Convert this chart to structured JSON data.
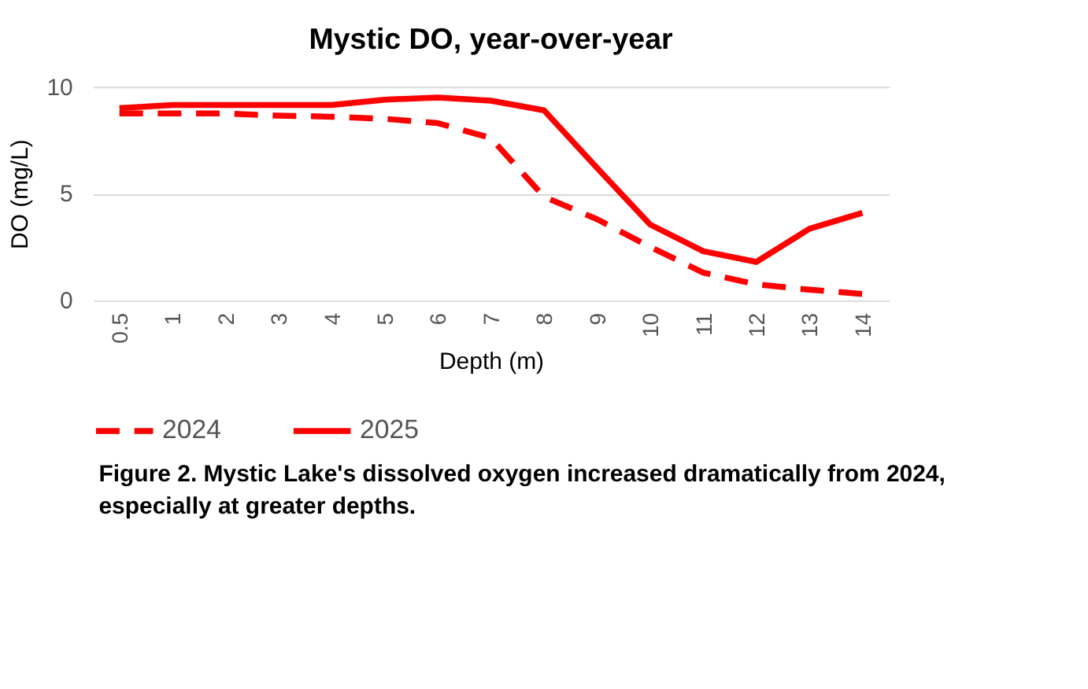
{
  "chart_data": {
    "type": "line",
    "title": "Mystic DO, year-over-year",
    "xlabel": "Depth (m)",
    "ylabel": "DO (mg/L)",
    "categories": [
      "0.5",
      "1",
      "2",
      "3",
      "4",
      "5",
      "6",
      "7",
      "8",
      "9",
      "10",
      "11",
      "12",
      "13",
      "14"
    ],
    "series": [
      {
        "name": "2024",
        "color": "#ff0000",
        "line_style": "dashed",
        "values": [
          8.75,
          8.75,
          8.75,
          8.65,
          8.6,
          8.5,
          8.3,
          7.6,
          4.85,
          3.8,
          2.5,
          1.3,
          0.75,
          0.5,
          0.3
        ]
      },
      {
        "name": "2025",
        "color": "#ff0000",
        "line_style": "solid",
        "values": [
          9.0,
          9.15,
          9.15,
          9.15,
          9.15,
          9.4,
          9.5,
          9.35,
          8.9,
          6.2,
          3.55,
          2.3,
          1.8,
          3.35,
          4.1
        ]
      }
    ],
    "ylim": [
      0,
      10
    ],
    "yticks": [
      0,
      5,
      10
    ],
    "grid": "y",
    "legend": "bottom",
    "marker": "none",
    "annotations": [
      "Figure 2. Mystic Lake's dissolved oxygen increased dramatically from 2024, especially at greater depths."
    ]
  }
}
